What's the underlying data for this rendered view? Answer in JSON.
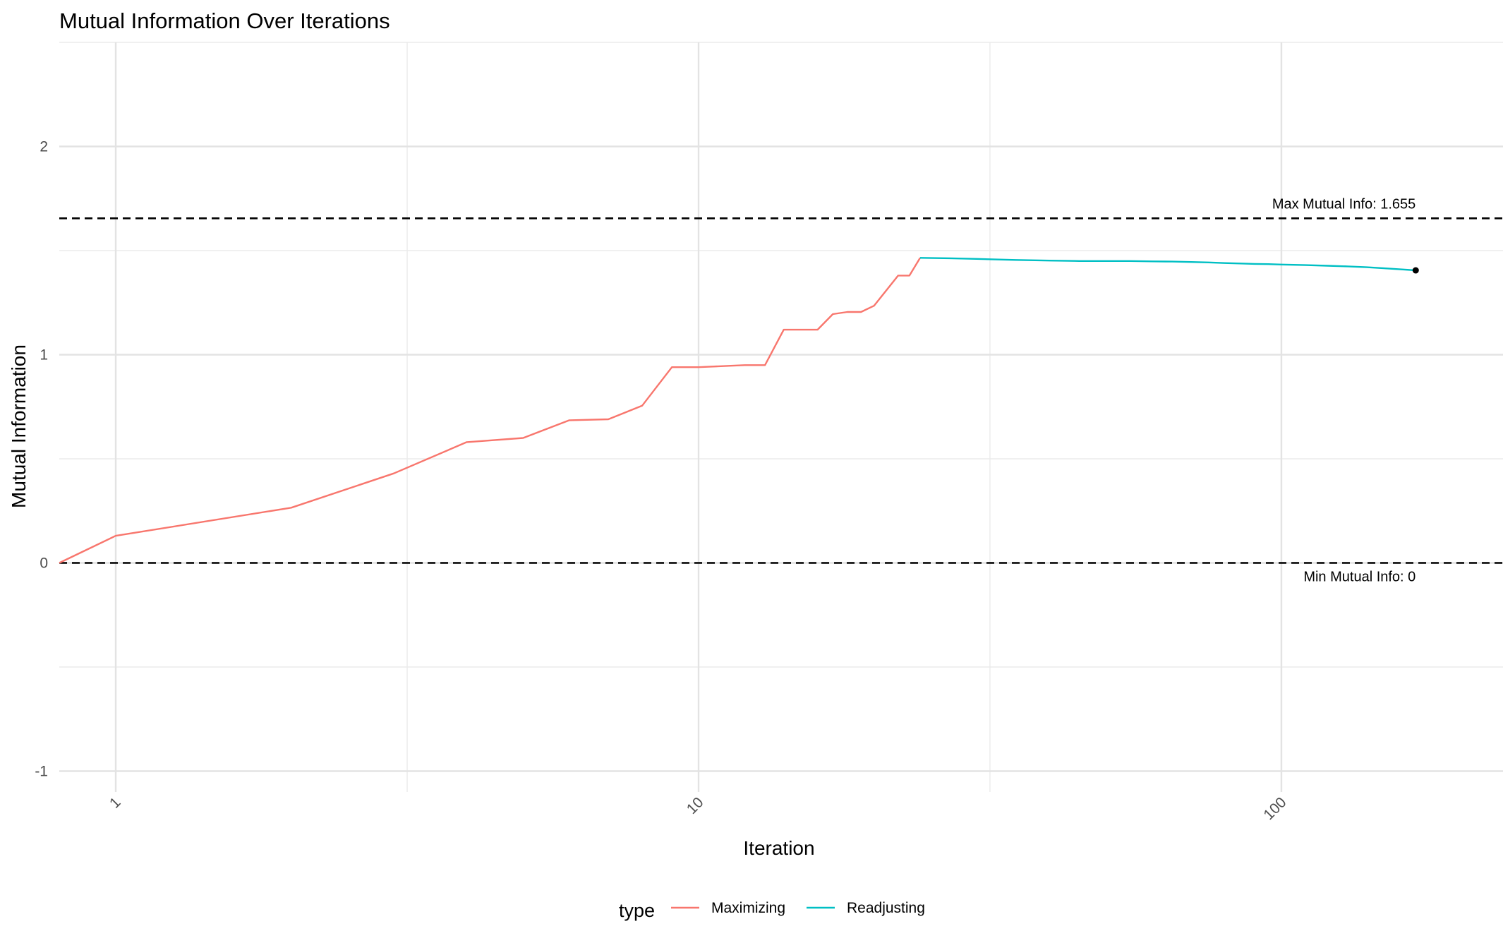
{
  "chart_data": {
    "type": "line",
    "title": "Mutual Information Over Iterations",
    "xlabel": "Iteration",
    "ylabel": "Mutual Information",
    "x_scale": "log10",
    "xlim": [
      0.8,
      240
    ],
    "ylim": [
      -1.1,
      2.5
    ],
    "x_ticks": [
      1,
      10,
      100
    ],
    "x_tick_labels": [
      "1",
      "10",
      "100"
    ],
    "y_ticks": [
      -1,
      0,
      1,
      2
    ],
    "y_tick_labels": [
      "-1",
      "0",
      "1",
      "2"
    ],
    "grid": true,
    "legend": {
      "title": "type",
      "position": "bottom"
    },
    "series": [
      {
        "name": "Maximizing",
        "color": "#F8766D",
        "x": [
          0.8,
          1,
          2,
          3,
          4,
          5,
          6,
          7,
          8,
          9,
          10,
          12,
          13,
          14,
          16,
          17,
          18,
          19,
          20,
          22,
          23
        ],
        "y": [
          0.0,
          0.13,
          0.265,
          0.43,
          0.58,
          0.6,
          0.685,
          0.69,
          0.755,
          0.94,
          0.94,
          0.95,
          0.95,
          1.12,
          1.12,
          1.195,
          1.205,
          1.205,
          1.235,
          1.38,
          1.38
        ]
      },
      {
        "name": "Readjusting",
        "color": "#00BFC4",
        "x": [
          24,
          27,
          30,
          35,
          40,
          45,
          50,
          55,
          60,
          65,
          70,
          75,
          80,
          85,
          90,
          95,
          100,
          110,
          120,
          130,
          140,
          150,
          160,
          170
        ],
        "y": [
          1.465,
          1.463,
          1.46,
          1.455,
          1.452,
          1.45,
          1.45,
          1.45,
          1.448,
          1.447,
          1.445,
          1.443,
          1.44,
          1.438,
          1.436,
          1.435,
          1.433,
          1.43,
          1.427,
          1.424,
          1.42,
          1.415,
          1.41,
          1.405
        ]
      }
    ],
    "end_point": {
      "x": 170,
      "y": 1.405
    },
    "reference_lines": [
      {
        "y": 1.655,
        "label": "Max Mutual Info: 1.655"
      },
      {
        "y": 0,
        "label": "Min Mutual Info: 0"
      }
    ]
  }
}
